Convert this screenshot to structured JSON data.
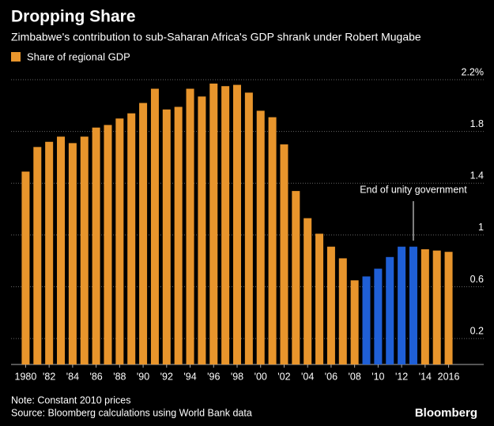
{
  "chart_data": {
    "type": "bar",
    "title": "Dropping Share",
    "subtitle": "Zimbabwe's contribution to sub-Saharan Africa's GDP shrank under Robert Mugabe",
    "series_name": "Share of regional GDP",
    "color": "#e8952c",
    "categories": [
      "1980",
      null,
      "'82",
      null,
      "'84",
      null,
      "'86",
      null,
      "'88",
      null,
      "'90",
      null,
      "'92",
      null,
      "'94",
      null,
      "'96",
      null,
      "'98",
      null,
      "'00",
      null,
      "'02",
      null,
      "'04",
      null,
      "'06",
      null,
      "'08",
      null,
      "'10",
      null,
      "'12",
      null,
      "'14",
      null,
      "2016"
    ],
    "values": [
      1.49,
      1.68,
      1.72,
      1.76,
      1.71,
      1.76,
      1.83,
      1.85,
      1.9,
      1.94,
      2.02,
      2.13,
      1.97,
      1.99,
      2.13,
      2.07,
      2.17,
      2.15,
      2.16,
      2.1,
      1.96,
      1.91,
      1.7,
      1.34,
      1.13,
      1.01,
      0.91,
      0.82,
      0.65,
      0.68,
      0.74,
      0.83,
      0.91,
      0.91,
      0.89,
      0.88,
      0.87
    ],
    "colors": [
      "#e8952c",
      "#e8952c",
      "#e8952c",
      "#e8952c",
      "#e8952c",
      "#e8952c",
      "#e8952c",
      "#e8952c",
      "#e8952c",
      "#e8952c",
      "#e8952c",
      "#e8952c",
      "#e8952c",
      "#e8952c",
      "#e8952c",
      "#e8952c",
      "#e8952c",
      "#e8952c",
      "#e8952c",
      "#e8952c",
      "#e8952c",
      "#e8952c",
      "#e8952c",
      "#e8952c",
      "#e8952c",
      "#e8952c",
      "#e8952c",
      "#e8952c",
      "#e8952c",
      "#1f5fd6",
      "#1f5fd6",
      "#1f5fd6",
      "#1f5fd6",
      "#1f5fd6",
      "#e8952c",
      "#e8952c",
      "#e8952c"
    ],
    "ylim": [
      0,
      2.2
    ],
    "yticks": [
      0.2,
      0.6,
      1.0,
      1.4,
      1.8,
      {
        "value": 2.2,
        "label": "2.2%"
      }
    ],
    "grid": true,
    "annotation": "End of unity government",
    "note": "Note: Constant 2010 prices",
    "source": "Source: Bloomberg calculations using World Bank data",
    "logo": "Bloomberg"
  }
}
